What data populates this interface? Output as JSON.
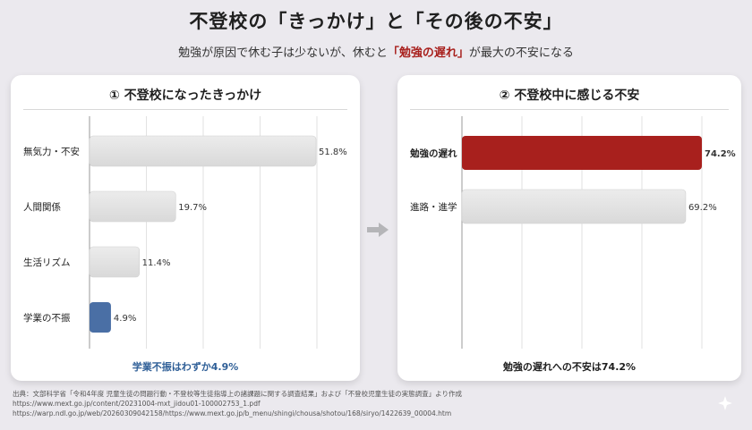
{
  "header": {
    "title": "不登校の「きっかけ」と「その後の不安」",
    "subtitle_pre": "勉強が原因で休む子は少ないが、休むと",
    "subtitle_em": "「勉強の遅れ」",
    "subtitle_post": "が最大の不安になる"
  },
  "chart_data": [
    {
      "type": "bar",
      "orientation": "horizontal",
      "title": "① 不登校になったきっかけ",
      "categories": [
        "無気力・不安",
        "人間関係",
        "生活リズム",
        "学業の不振"
      ],
      "values": [
        51.8,
        19.7,
        11.4,
        4.9
      ],
      "value_labels": [
        "51.8%",
        "19.7%",
        "11.4%",
        "4.9%"
      ],
      "highlight_index": 3,
      "xlim": [
        0,
        52
      ],
      "grid": true,
      "note": "学業不振はわずか4.9%",
      "colors": {
        "bar": "#d9d9d9",
        "highlight": "#4a6fa5",
        "note": "#2f5f97"
      }
    },
    {
      "type": "bar",
      "orientation": "horizontal",
      "title": "② 不登校中に感じる不安",
      "categories": [
        "勉強の遅れ",
        "進路・進学"
      ],
      "values": [
        74.2,
        69.2
      ],
      "value_labels": [
        "74.2%",
        "69.2%"
      ],
      "highlight_index": 0,
      "xlim": [
        0,
        74.2
      ],
      "grid": true,
      "note": "勉強の遅れへの不安は74.2%",
      "colors": {
        "bar": "#d9d9d9",
        "highlight": "#a8201d",
        "note": "#1f1f1f"
      }
    }
  ],
  "source": {
    "line1": "出典：文部科学省「令和4年度 児童生徒の問題行動・不登校等生徒指導上の諸課題に関する調査結果」および「不登校児童生徒の実態調査」より作成",
    "line2": "https://www.mext.go.jp/content/20231004-mxt_jidou01-100002753_1.pdf",
    "line3": "https://warp.ndl.go.jp/web/20260309042158/https://www.mext.go.jp/b_menu/shingi/chousa/shotou/168/siryo/1422639_00004.htm"
  }
}
